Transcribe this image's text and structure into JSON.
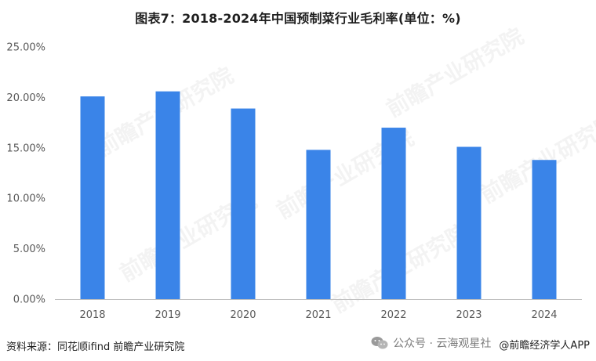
{
  "title": "图表7：2018-2024年中国预制菜行业毛利率(单位：%)",
  "colors": {
    "bar": "#3a84e8",
    "axis": "#bfbfbf",
    "text": "#595959"
  },
  "chart_data": {
    "type": "bar",
    "title": "图表7：2018-2024年中国预制菜行业毛利率(单位：%)",
    "categories": [
      "2018",
      "2019",
      "2020",
      "2021",
      "2022",
      "2023",
      "2024"
    ],
    "values": [
      20.1,
      20.6,
      18.9,
      14.8,
      17.0,
      15.1,
      13.8
    ],
    "ylim": [
      0,
      25
    ],
    "yticks": [
      "0.00%",
      "5.00%",
      "10.00%",
      "15.00%",
      "20.00%",
      "25.00%"
    ],
    "ytick_values": [
      0,
      5,
      10,
      15,
      20,
      25
    ],
    "grid": false,
    "legend": "none"
  },
  "footer": {
    "source": "资料来源：同花顺ifind 前瞻产业研究院",
    "wechat": "公众号 · 云海观星社",
    "brand": "@前瞻经济学人APP"
  },
  "watermark": {
    "text": "前瞻产业研究院"
  }
}
